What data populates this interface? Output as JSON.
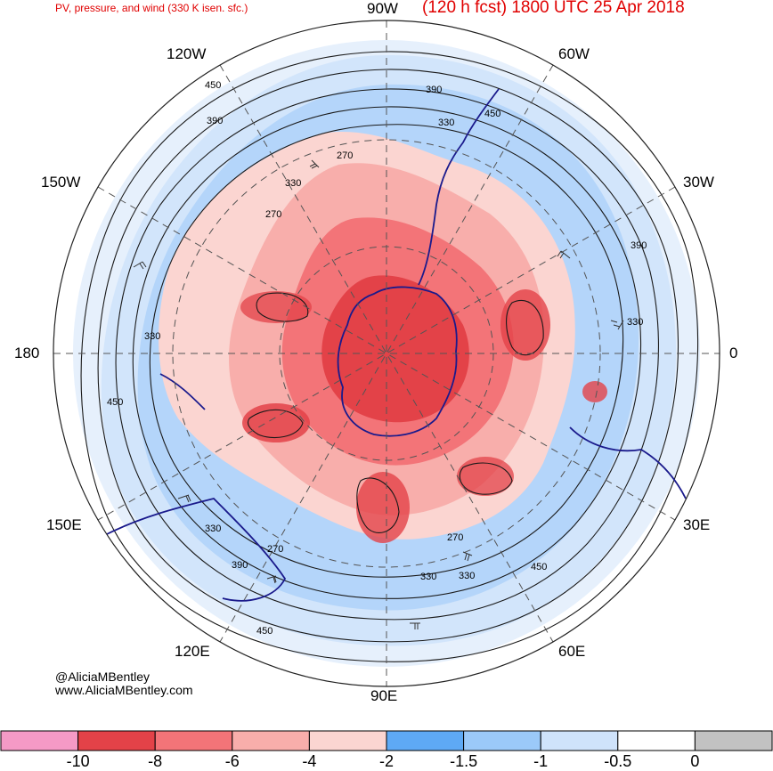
{
  "header": {
    "subtitle": "PV, pressure, and wind (330 K isen. sfc.)",
    "title": "(120 h fcst) 1800 UTC 25 Apr 2018"
  },
  "map": {
    "projection": "south-polar-stereographic",
    "longitude_labels": {
      "lon_90w": "90W",
      "lon_60w": "60W",
      "lon_30w": "30W",
      "lon_0": "0",
      "lon_30e": "30E",
      "lon_60e": "60E",
      "lon_90e": "90E",
      "lon_120e": "120E",
      "lon_150e": "150E",
      "lon_180": "180",
      "lon_150w": "150W",
      "lon_120w": "120W"
    },
    "contour_labels": [
      "450",
      "390",
      "330",
      "270",
      "330",
      "450",
      "390",
      "330",
      "330",
      "450",
      "330",
      "270",
      "390",
      "450",
      "270",
      "330",
      "390",
      "450",
      "270",
      "330",
      "390",
      "450"
    ],
    "colors": {
      "coast": "#1a1a8c",
      "contour": "#1a1a1a",
      "grid": "#555555"
    }
  },
  "credits": {
    "handle": "@AliciaMBentley",
    "website": "www.AliciaMBentley.com"
  },
  "colorbar": {
    "bins": [
      {
        "color": "#f59ac6"
      },
      {
        "color": "#e34248"
      },
      {
        "color": "#f37478"
      },
      {
        "color": "#f8aeab"
      },
      {
        "color": "#fbd5d1"
      },
      {
        "color": "#5ea9f5"
      },
      {
        "color": "#9bc9f9"
      },
      {
        "color": "#cfe3fb"
      },
      {
        "color": "#ffffff"
      },
      {
        "color": "#c2c2c2"
      }
    ],
    "tick_labels": [
      "-10",
      "-8",
      "-6",
      "-4",
      "-2",
      "-1.5",
      "-1",
      "-0.5",
      "0"
    ]
  }
}
